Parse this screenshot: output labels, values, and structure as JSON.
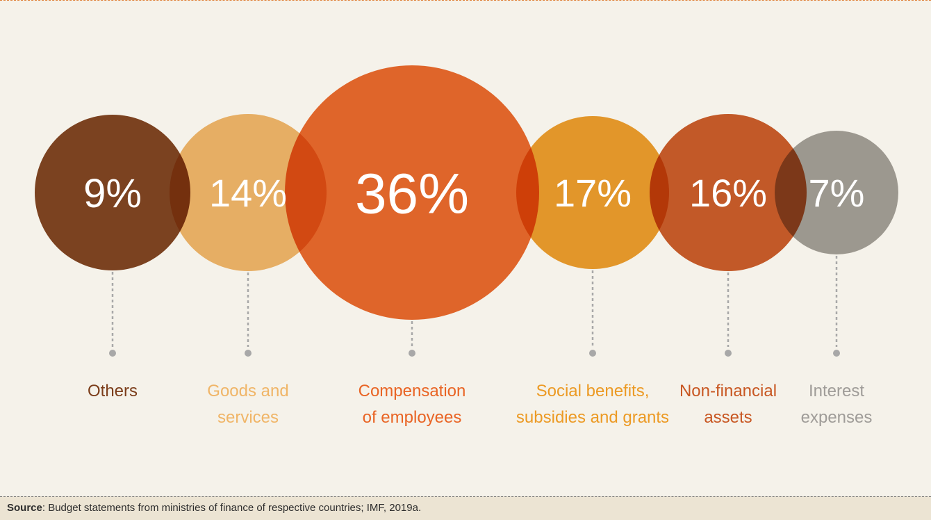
{
  "chart_data": {
    "type": "bubble",
    "categories": [
      "Others",
      "Goods and services",
      "Compensation of employees",
      "Social benefits, subsidies and grants",
      "Non-financial assets",
      "Interest expenses"
    ],
    "values": [
      9,
      14,
      36,
      17,
      16,
      7
    ],
    "value_labels": [
      "9%",
      "14%",
      "36%",
      "17%",
      "16%",
      "7%"
    ],
    "label_lines": [
      [
        "Others"
      ],
      [
        "Goods and",
        "services"
      ],
      [
        "Compensation",
        "of employees"
      ],
      [
        "Social benefits,",
        "subsidies and grants"
      ],
      [
        "Non-financial",
        "assets"
      ],
      [
        "Interest",
        "expenses"
      ]
    ],
    "colors": [
      "#7b3d1a",
      "#f0b567",
      "#e96424",
      "#ec9a24",
      "#c85722",
      "#9f9c98"
    ],
    "label_colors": [
      "#7b3d1a",
      "#f0b567",
      "#e96424",
      "#ec9a24",
      "#c85722",
      "#9f9c98"
    ]
  },
  "source": {
    "label": "Source",
    "text": ": Budget statements from ministries of finance of respective countries; IMF, 2019a."
  }
}
